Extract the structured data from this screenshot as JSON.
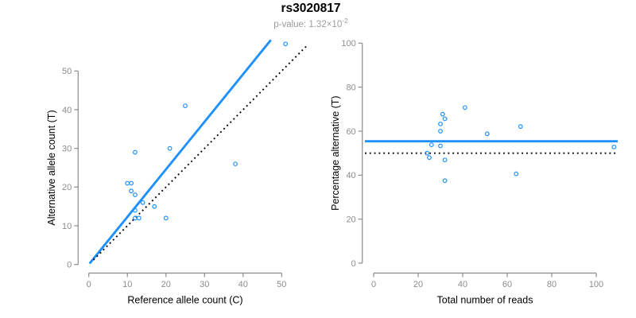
{
  "header": {
    "title": "rs3020817",
    "subtitle_base": "p-value: 1.32×10",
    "subtitle_exponent": "-2"
  },
  "colors": {
    "accent_blue": "#1E90FF",
    "dotted_black": "#000000",
    "axis_gray": "#8c8c8c",
    "tick_label_gray": "#8c8c8c",
    "axis_title_black": "#000000",
    "subtitle_gray": "#9c9c9c"
  },
  "chart_data": [
    {
      "type": "scatter",
      "panel": "left",
      "xlabel": "Reference allele count (C)",
      "ylabel": "Alternative allele count (T)",
      "xlim": [
        0,
        56
      ],
      "ylim": [
        0,
        58
      ],
      "xticks": [
        0,
        10,
        20,
        30,
        40,
        50
      ],
      "yticks": [
        0,
        10,
        20,
        30,
        40,
        50
      ],
      "grid": false,
      "legend": "none",
      "points": [
        [
          10,
          21
        ],
        [
          11,
          21
        ],
        [
          11,
          19
        ],
        [
          12,
          18
        ],
        [
          12,
          29
        ],
        [
          12,
          14
        ],
        [
          14,
          16
        ],
        [
          17,
          15
        ],
        [
          12,
          12
        ],
        [
          13,
          12
        ],
        [
          20,
          12
        ],
        [
          21,
          30
        ],
        [
          25,
          41
        ],
        [
          38,
          26
        ],
        [
          51,
          57
        ]
      ],
      "lines": [
        {
          "name": "fitted-ratio-line",
          "style": "solid",
          "color": "#1E90FF",
          "slope": 1.229,
          "intercept": 0,
          "x_start": 0.2,
          "x_end": 47.2
        },
        {
          "name": "identity-line",
          "style": "dotted",
          "color": "#000000",
          "slope": 1,
          "intercept": 0,
          "x_start": 1.2,
          "x_end": 56.6
        }
      ]
    },
    {
      "type": "scatter",
      "panel": "right",
      "xlabel": "Total number of reads",
      "ylabel": "Percentage alternative (T)",
      "xlim": [
        0,
        110
      ],
      "ylim": [
        0,
        100
      ],
      "xticks": [
        0,
        20,
        40,
        60,
        80,
        100
      ],
      "yticks": [
        0,
        20,
        40,
        60,
        80,
        100
      ],
      "grid": false,
      "legend": "none",
      "points": [
        [
          31,
          67.7
        ],
        [
          32,
          65.6
        ],
        [
          30,
          63.3
        ],
        [
          30,
          60
        ],
        [
          41,
          70.7
        ],
        [
          26,
          53.8
        ],
        [
          30,
          53.3
        ],
        [
          32,
          46.9
        ],
        [
          24,
          50
        ],
        [
          25,
          48
        ],
        [
          32,
          37.5
        ],
        [
          51,
          58.8
        ],
        [
          66,
          62.1
        ],
        [
          64,
          40.6
        ],
        [
          108,
          52.8
        ]
      ],
      "lines": [
        {
          "name": "mean-percentage-line",
          "style": "solid",
          "color": "#1E90FF",
          "y": 55.4
        },
        {
          "name": "null-50-line",
          "style": "dotted",
          "color": "#000000",
          "y": 50
        }
      ]
    }
  ]
}
